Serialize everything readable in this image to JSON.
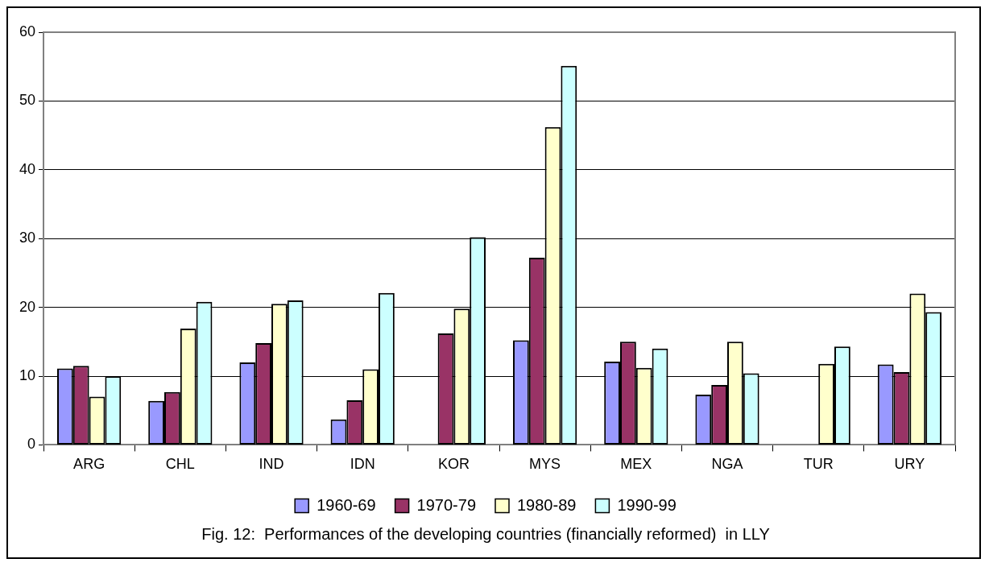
{
  "chart_data": {
    "type": "bar",
    "title": "Fig. 12:  Performances of the developing countries (financially reformed)  in LLY",
    "categories": [
      "ARG",
      "CHL",
      "IND",
      "IDN",
      "KOR",
      "MYS",
      "MEX",
      "NGA",
      "TUR",
      "URY"
    ],
    "series": [
      {
        "name": "1960-69",
        "color": "#9999ff",
        "values": [
          11.1,
          6.4,
          12.0,
          3.7,
          null,
          15.2,
          12.1,
          7.3,
          null,
          11.7
        ]
      },
      {
        "name": "1970-79",
        "color": "#993366",
        "values": [
          11.5,
          7.7,
          14.8,
          6.5,
          16.2,
          27.2,
          15.0,
          8.7,
          null,
          10.6
        ]
      },
      {
        "name": "1980-89",
        "color": "#ffffcc",
        "values": [
          7.0,
          16.9,
          20.5,
          11.0,
          19.8,
          46.2,
          11.2,
          15.0,
          11.8,
          22.0
        ]
      },
      {
        "name": "1990-99",
        "color": "#ccffff",
        "values": [
          10.0,
          20.8,
          21.0,
          22.1,
          30.2,
          55.1,
          14.0,
          10.4,
          14.3,
          19.3
        ]
      }
    ],
    "ylim": [
      0,
      60
    ],
    "yticks": [
      0,
      10,
      20,
      30,
      40,
      50,
      60
    ],
    "grid": "y",
    "legend": "bottom"
  }
}
